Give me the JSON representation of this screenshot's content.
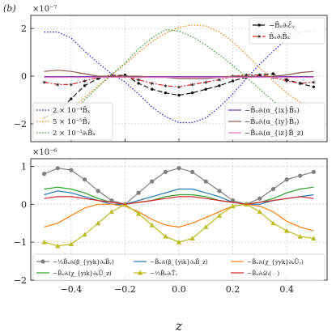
{
  "chart_data": [
    {
      "type": "line",
      "panel_label": "(b)",
      "offset_text": "×10⁻⁷",
      "xlim": [
        -0.55,
        0.55
      ],
      "ylim": [
        -2.75,
        2.55
      ],
      "yticks": [
        2,
        0,
        -2
      ],
      "ytick_labels": [
        "2",
        "0",
        "−2"
      ],
      "xticks": [
        -0.4,
        -0.2,
        0.0,
        0.2,
        0.4
      ],
      "grid": true,
      "legend_positions": [
        "upper-right",
        "lower-left",
        "lower-right"
      ],
      "series": [
        {
          "name": "−B̄ₓ∂ₜℰ̄ᵧ",
          "legend": "upper-right",
          "color": "#111111",
          "dash": "6,3",
          "marker": "dot",
          "x": [
            -0.5,
            -0.45,
            -0.4,
            -0.35,
            -0.3,
            -0.25,
            -0.2,
            -0.15,
            -0.1,
            -0.05,
            0.0,
            0.05,
            0.1,
            0.15,
            0.2,
            0.25,
            0.3,
            0.35,
            0.4,
            0.45,
            0.5
          ],
          "values": [
            -1.75,
            -1.5,
            -0.95,
            -0.4,
            -0.1,
            0.0,
            0.05,
            -0.3,
            -0.55,
            -0.7,
            -0.8,
            -0.7,
            -0.55,
            -0.4,
            -0.2,
            -0.05,
            0.05,
            0.1,
            -0.15,
            -0.3,
            -0.45
          ]
        },
        {
          "name": "B̄ₓ∂ₜB̄ₓ",
          "legend": "upper-right",
          "color": "#d62728",
          "dash": "6,2,2,2",
          "marker": "star",
          "x": [
            -0.5,
            -0.45,
            -0.4,
            -0.35,
            -0.3,
            -0.25,
            -0.2,
            -0.15,
            -0.1,
            -0.05,
            0.0,
            0.05,
            0.1,
            0.15,
            0.2,
            0.25,
            0.3,
            0.35,
            0.4,
            0.45,
            0.5
          ],
          "values": [
            -0.25,
            -0.35,
            -0.35,
            -0.2,
            -0.05,
            0.05,
            0.0,
            -0.15,
            -0.3,
            -0.4,
            -0.45,
            -0.35,
            -0.25,
            -0.15,
            0.0,
            0.05,
            0.05,
            -0.05,
            -0.2,
            -0.3,
            -0.25
          ]
        },
        {
          "name": "2 × 10⁻⁴B̄ₓ",
          "legend": "lower-left",
          "color": "#1f1fcf",
          "dash": "1.5,2",
          "marker": "none",
          "x": [
            -0.5,
            -0.45,
            -0.4,
            -0.35,
            -0.3,
            -0.25,
            -0.2,
            -0.15,
            -0.1,
            -0.05,
            0.0,
            0.05,
            0.1,
            0.15,
            0.2,
            0.25,
            0.3,
            0.35,
            0.4,
            0.45,
            0.5
          ],
          "values": [
            1.85,
            1.85,
            1.6,
            1.05,
            0.55,
            0.1,
            -0.25,
            -0.75,
            -1.3,
            -1.7,
            -1.95,
            -1.95,
            -1.75,
            -1.3,
            -0.75,
            -0.1,
            0.5,
            1.05,
            1.55,
            1.85,
            1.9
          ]
        },
        {
          "name": "5 × 10⁻⁵B̄ᵧ",
          "legend": "lower-left",
          "color": "#ff7f0e",
          "dash": "1.5,2",
          "marker": "none",
          "x": [
            -0.5,
            -0.45,
            -0.4,
            -0.35,
            -0.3,
            -0.25,
            -0.2,
            -0.15,
            -0.1,
            -0.05,
            0.0,
            0.05,
            0.1,
            0.15,
            0.2,
            0.25,
            0.3,
            0.35,
            0.4,
            0.45,
            0.5
          ],
          "values": [
            -1.9,
            -1.75,
            -1.4,
            -0.9,
            -0.4,
            0.05,
            0.5,
            1.0,
            1.45,
            1.8,
            2.05,
            2.15,
            2.1,
            1.85,
            1.45,
            0.9,
            0.35,
            -0.2,
            -0.7,
            -1.1,
            -1.35
          ]
        },
        {
          "name": "2 × 10⁻³∂ₜB̄ₓ",
          "legend": "lower-left",
          "color": "#2ca02c",
          "dash": "1.5,2",
          "marker": "none",
          "x": [
            -0.5,
            -0.45,
            -0.4,
            -0.35,
            -0.3,
            -0.25,
            -0.2,
            -0.15,
            -0.1,
            -0.05,
            0.0,
            0.05,
            0.1,
            0.15,
            0.2,
            0.25,
            0.3,
            0.35,
            0.4,
            0.45,
            0.5
          ],
          "values": [
            -2.0,
            -1.85,
            -1.6,
            -1.0,
            -0.45,
            0.05,
            0.55,
            1.15,
            1.6,
            1.95,
            1.9,
            1.65,
            1.3,
            0.9,
            0.45,
            -0.05,
            -0.55,
            -1.05,
            -1.45,
            -1.75,
            -1.85
          ]
        },
        {
          "name": "−B̄ₓ∂ᵢ(α_{ix}B̄ₓ)",
          "legend": "lower-right",
          "color": "#7040b0",
          "dash": "none",
          "marker": "none",
          "x": [
            -0.5,
            -0.3,
            -0.1,
            0.1,
            0.3,
            0.5
          ],
          "values": [
            -0.02,
            -0.02,
            -0.02,
            -0.02,
            -0.02,
            -0.02
          ]
        },
        {
          "name": "−B̄ₓ∂ᵢ(α_{iy}B̄ᵧ)",
          "legend": "lower-right",
          "color": "#8c564b",
          "dash": "none",
          "marker": "none",
          "x": [
            -0.5,
            -0.45,
            -0.4,
            -0.35,
            -0.3,
            -0.25,
            -0.2,
            -0.15,
            -0.1,
            -0.05,
            0.0,
            0.05,
            0.1,
            0.15,
            0.2,
            0.25,
            0.3,
            0.35,
            0.4,
            0.45,
            0.5
          ],
          "values": [
            0.2,
            0.25,
            0.2,
            0.1,
            0.0,
            0.0,
            0.0,
            0.0,
            -0.05,
            -0.05,
            -0.1,
            -0.1,
            -0.1,
            -0.05,
            0.0,
            0.0,
            -0.05,
            0.0,
            0.05,
            0.15,
            0.2
          ]
        },
        {
          "name": "−B̄ₓ∂ᵢ(α_{iz}B̄_z)",
          "legend": "lower-right",
          "color": "#e377c2",
          "dash": "none",
          "marker": "none",
          "x": [
            -0.5,
            -0.3,
            -0.1,
            0.1,
            0.3,
            0.5
          ],
          "values": [
            -0.05,
            -0.05,
            -0.05,
            -0.05,
            -0.05,
            -0.05
          ]
        }
      ]
    },
    {
      "type": "line",
      "offset_text": "×10⁻⁶",
      "xlim": [
        -0.55,
        0.55
      ],
      "ylim": [
        -2.0,
        1.2
      ],
      "yticks": [
        1,
        0,
        -1,
        -2
      ],
      "ytick_labels": [
        "1",
        "0",
        "−1",
        "−2"
      ],
      "xticks": [
        -0.4,
        -0.2,
        0.0,
        0.2,
        0.4
      ],
      "xtick_labels": [
        "−0.4",
        "−0.2",
        "0.0",
        "0.2",
        "0.4"
      ],
      "xlabel": "z",
      "grid": true,
      "legend_position": "lower-center",
      "series": [
        {
          "name": "−⅓B̄ₓ∂ᵢ(β_{yyk}∂ₖB̄ᵧ)",
          "color": "#7f7f7f",
          "marker": "circle",
          "x": [
            -0.5,
            -0.45,
            -0.4,
            -0.35,
            -0.3,
            -0.25,
            -0.2,
            -0.15,
            -0.1,
            -0.05,
            0.0,
            0.05,
            0.1,
            0.15,
            0.2,
            0.25,
            0.3,
            0.35,
            0.4,
            0.45,
            0.5
          ],
          "values": [
            0.8,
            0.95,
            0.9,
            0.65,
            0.35,
            0.1,
            0.0,
            0.3,
            0.6,
            0.85,
            0.95,
            0.85,
            0.6,
            0.35,
            0.1,
            0.0,
            0.15,
            0.4,
            0.65,
            0.75,
            0.85
          ]
        },
        {
          "name": "−B̄ₓ∂ᵢ(β_{yik}∂ₖB̄_z)",
          "color": "#1f77b4",
          "marker": "none",
          "x": [
            -0.5,
            -0.45,
            -0.4,
            -0.35,
            -0.3,
            -0.25,
            -0.2,
            -0.15,
            -0.1,
            -0.05,
            0.0,
            0.05,
            0.1,
            0.15,
            0.2,
            0.25,
            0.3,
            0.35,
            0.4,
            0.45,
            0.5
          ],
          "values": [
            0.25,
            0.35,
            0.3,
            0.2,
            0.1,
            0.0,
            0.0,
            0.1,
            0.2,
            0.3,
            0.4,
            0.4,
            0.3,
            0.2,
            0.05,
            0.0,
            0.0,
            0.1,
            0.15,
            0.2,
            0.25
          ]
        },
        {
          "name": "−B̄ₓ∂ᵢ(χ_{yyk}∂ₖŪᵧ)",
          "color": "#ff7f0e",
          "marker": "none",
          "x": [
            -0.5,
            -0.45,
            -0.4,
            -0.35,
            -0.3,
            -0.25,
            -0.2,
            -0.15,
            -0.1,
            -0.05,
            0.0,
            0.05,
            0.1,
            0.15,
            0.2,
            0.25,
            0.3,
            0.35,
            0.4,
            0.45,
            0.5
          ],
          "values": [
            -0.6,
            -0.5,
            -0.3,
            -0.1,
            0.0,
            0.0,
            -0.05,
            -0.2,
            -0.4,
            -0.55,
            -0.6,
            -0.5,
            -0.35,
            -0.2,
            -0.05,
            0.0,
            -0.05,
            -0.2,
            -0.45,
            -0.6,
            -0.7
          ]
        },
        {
          "name": "−B̄ₓ∂ᵢ(χ_{yik}∂ₖŪ_z)",
          "color": "#2ca02c",
          "marker": "none",
          "x": [
            -0.5,
            -0.45,
            -0.4,
            -0.35,
            -0.3,
            -0.25,
            -0.2,
            -0.15,
            -0.1,
            -0.05,
            0.0,
            0.05,
            0.1,
            0.15,
            0.2,
            0.25,
            0.3,
            0.35,
            0.4,
            0.45,
            0.5
          ],
          "values": [
            0.4,
            0.45,
            0.4,
            0.3,
            0.15,
            0.05,
            0.0,
            0.05,
            0.1,
            0.2,
            0.25,
            0.25,
            0.2,
            0.1,
            0.05,
            0.0,
            0.05,
            0.15,
            0.3,
            0.4,
            0.45
          ]
        },
        {
          "name": "−⅓B̄ₓ∂ₜT̄ᵧ",
          "color": "#bcbd22",
          "marker": "triangle",
          "x": [
            -0.5,
            -0.45,
            -0.4,
            -0.35,
            -0.3,
            -0.25,
            -0.2,
            -0.15,
            -0.1,
            -0.05,
            0.0,
            0.05,
            0.1,
            0.15,
            0.2,
            0.25,
            0.3,
            0.35,
            0.4,
            0.45,
            0.5
          ],
          "values": [
            -1.0,
            -1.1,
            -1.05,
            -0.8,
            -0.5,
            -0.2,
            0.0,
            -0.25,
            -0.55,
            -0.85,
            -1.0,
            -0.9,
            -0.6,
            -0.3,
            -0.05,
            0.0,
            -0.2,
            -0.5,
            -0.7,
            -0.85,
            -0.9
          ]
        },
        {
          "name": "−B̄ₓ∂ₜ𝒟ₜ(⋯)",
          "color": "#d62728",
          "marker": "none",
          "x": [
            -0.5,
            -0.45,
            -0.4,
            -0.35,
            -0.3,
            -0.25,
            -0.2,
            -0.15,
            -0.1,
            -0.05,
            0.0,
            0.05,
            0.1,
            0.15,
            0.2,
            0.25,
            0.3,
            0.35,
            0.4,
            0.45,
            0.5
          ],
          "values": [
            0.15,
            0.2,
            0.2,
            0.15,
            0.1,
            0.05,
            0.0,
            0.05,
            0.1,
            0.15,
            0.2,
            0.2,
            0.15,
            0.1,
            0.05,
            0.0,
            0.05,
            0.1,
            0.15,
            0.2,
            0.15
          ]
        }
      ]
    }
  ]
}
